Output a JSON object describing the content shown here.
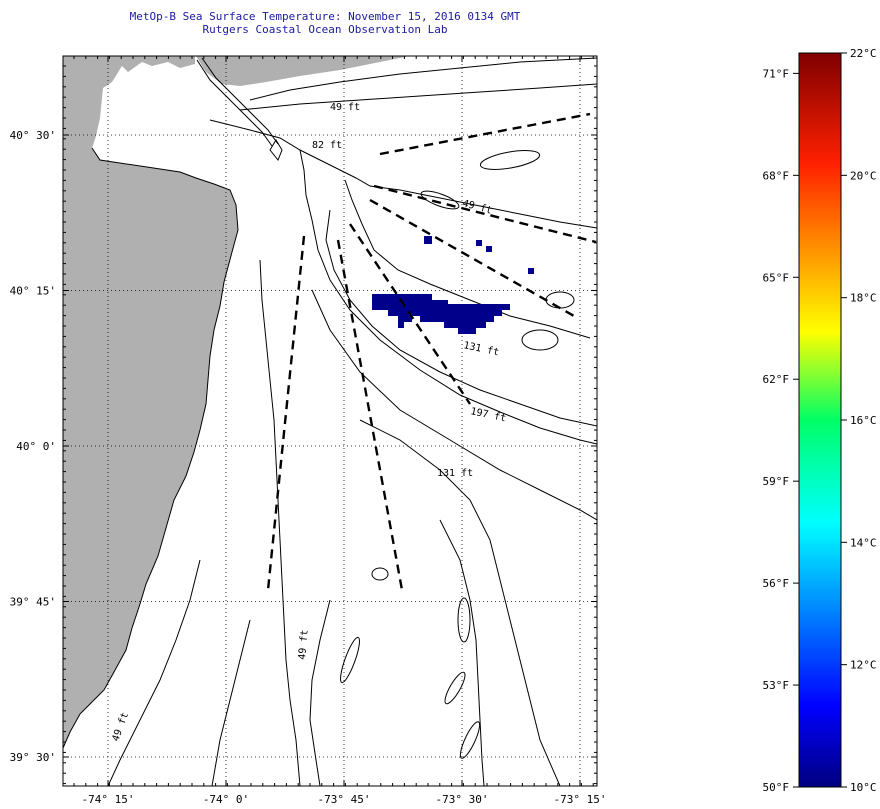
{
  "title": {
    "line1": "MetOp-B Sea Surface Temperature:  November 15, 2016 0134 GMT",
    "line2": "Rutgers Coastal Ocean Observation Lab"
  },
  "map": {
    "lat_ticks": [
      {
        "label": "40° 30'",
        "value": 40.5
      },
      {
        "label": "40° 15'",
        "value": 40.25
      },
      {
        "label": "40° 0'",
        "value": 40.0
      },
      {
        "label": "39° 45'",
        "value": 39.75
      },
      {
        "label": "39° 30'",
        "value": 39.5
      }
    ],
    "lon_ticks": [
      {
        "label": "-74° 15'",
        "value": -74.25
      },
      {
        "label": "-74° 0'",
        "value": -74.0
      },
      {
        "label": "-73° 45'",
        "value": -73.75
      },
      {
        "label": "-73° 30'",
        "value": -73.5
      },
      {
        "label": "-73° 15'",
        "value": -73.25
      }
    ],
    "depth_labels": [
      {
        "text": "49 ft"
      },
      {
        "text": "82 ft"
      },
      {
        "text": "131 ft"
      },
      {
        "text": "197 ft"
      },
      {
        "text": "131 ft"
      },
      {
        "text": "49 ft"
      },
      {
        "text": "49 ft"
      },
      {
        "text": "49 ft"
      }
    ],
    "land_color": "#b0b0b0",
    "sst_patch_color": "#00008b"
  },
  "colorbar": {
    "celsius": [
      {
        "label": "22°C",
        "value": 22
      },
      {
        "label": "20°C",
        "value": 20
      },
      {
        "label": "18°C",
        "value": 18
      },
      {
        "label": "16°C",
        "value": 16
      },
      {
        "label": "14°C",
        "value": 14
      },
      {
        "label": "12°C",
        "value": 12
      },
      {
        "label": "10°C",
        "value": 10
      }
    ],
    "fahrenheit": [
      {
        "label": "71°F",
        "value": 71
      },
      {
        "label": "68°F",
        "value": 68
      },
      {
        "label": "65°F",
        "value": 65
      },
      {
        "label": "62°F",
        "value": 62
      },
      {
        "label": "59°F",
        "value": 59
      },
      {
        "label": "56°F",
        "value": 56
      },
      {
        "label": "53°F",
        "value": 53
      },
      {
        "label": "50°F",
        "value": 50
      }
    ]
  }
}
